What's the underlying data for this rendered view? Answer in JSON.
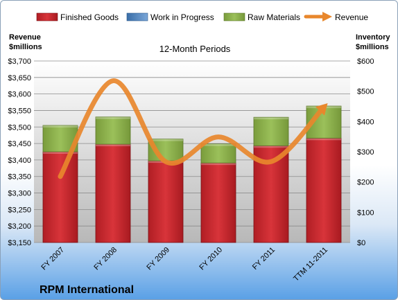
{
  "chart_data": {
    "type": "bar",
    "title": "12-Month Periods",
    "brand": "RPM International",
    "categories": [
      "FY 2007",
      "FY 2008",
      "FY 2009",
      "FY 2010",
      "FY 2011",
      "TTM 11-2011"
    ],
    "left_axis": {
      "label_line1": "Revenue",
      "label_line2": "$millions",
      "ylim": [
        3150,
        3700
      ],
      "ticks": [
        "$3,150",
        "$3,200",
        "$3,250",
        "$3,300",
        "$3,350",
        "$3,400",
        "$3,450",
        "$3,500",
        "$3,550",
        "$3,600",
        "$3,650",
        "$3,700"
      ]
    },
    "right_axis": {
      "label_line1": "Inventory",
      "label_line2": "$millions",
      "ylim": [
        0,
        600
      ],
      "ticks": [
        "$0",
        "$100",
        "$200",
        "$300",
        "$400",
        "$500",
        "$600"
      ]
    },
    "series": [
      {
        "name": "Finished Goods",
        "axis": "right",
        "kind": "stacked-bar",
        "color": "#c0272d",
        "values": [
          300,
          325,
          270,
          263,
          320,
          345
        ]
      },
      {
        "name": "Work in Progress",
        "axis": "right",
        "kind": "stacked-bar",
        "color": "#4f81bd",
        "values": [
          0,
          0,
          0,
          0,
          0,
          0
        ]
      },
      {
        "name": "Raw Materials",
        "axis": "right",
        "kind": "stacked-bar",
        "color": "#8cb24a",
        "values": [
          87,
          90,
          72,
          63,
          94,
          106
        ]
      },
      {
        "name": "Revenue",
        "axis": "left",
        "kind": "line",
        "color": "#e8872c",
        "values": [
          3350,
          3640,
          3395,
          3470,
          3395,
          3560
        ]
      }
    ],
    "grid": true,
    "legend": "top"
  }
}
